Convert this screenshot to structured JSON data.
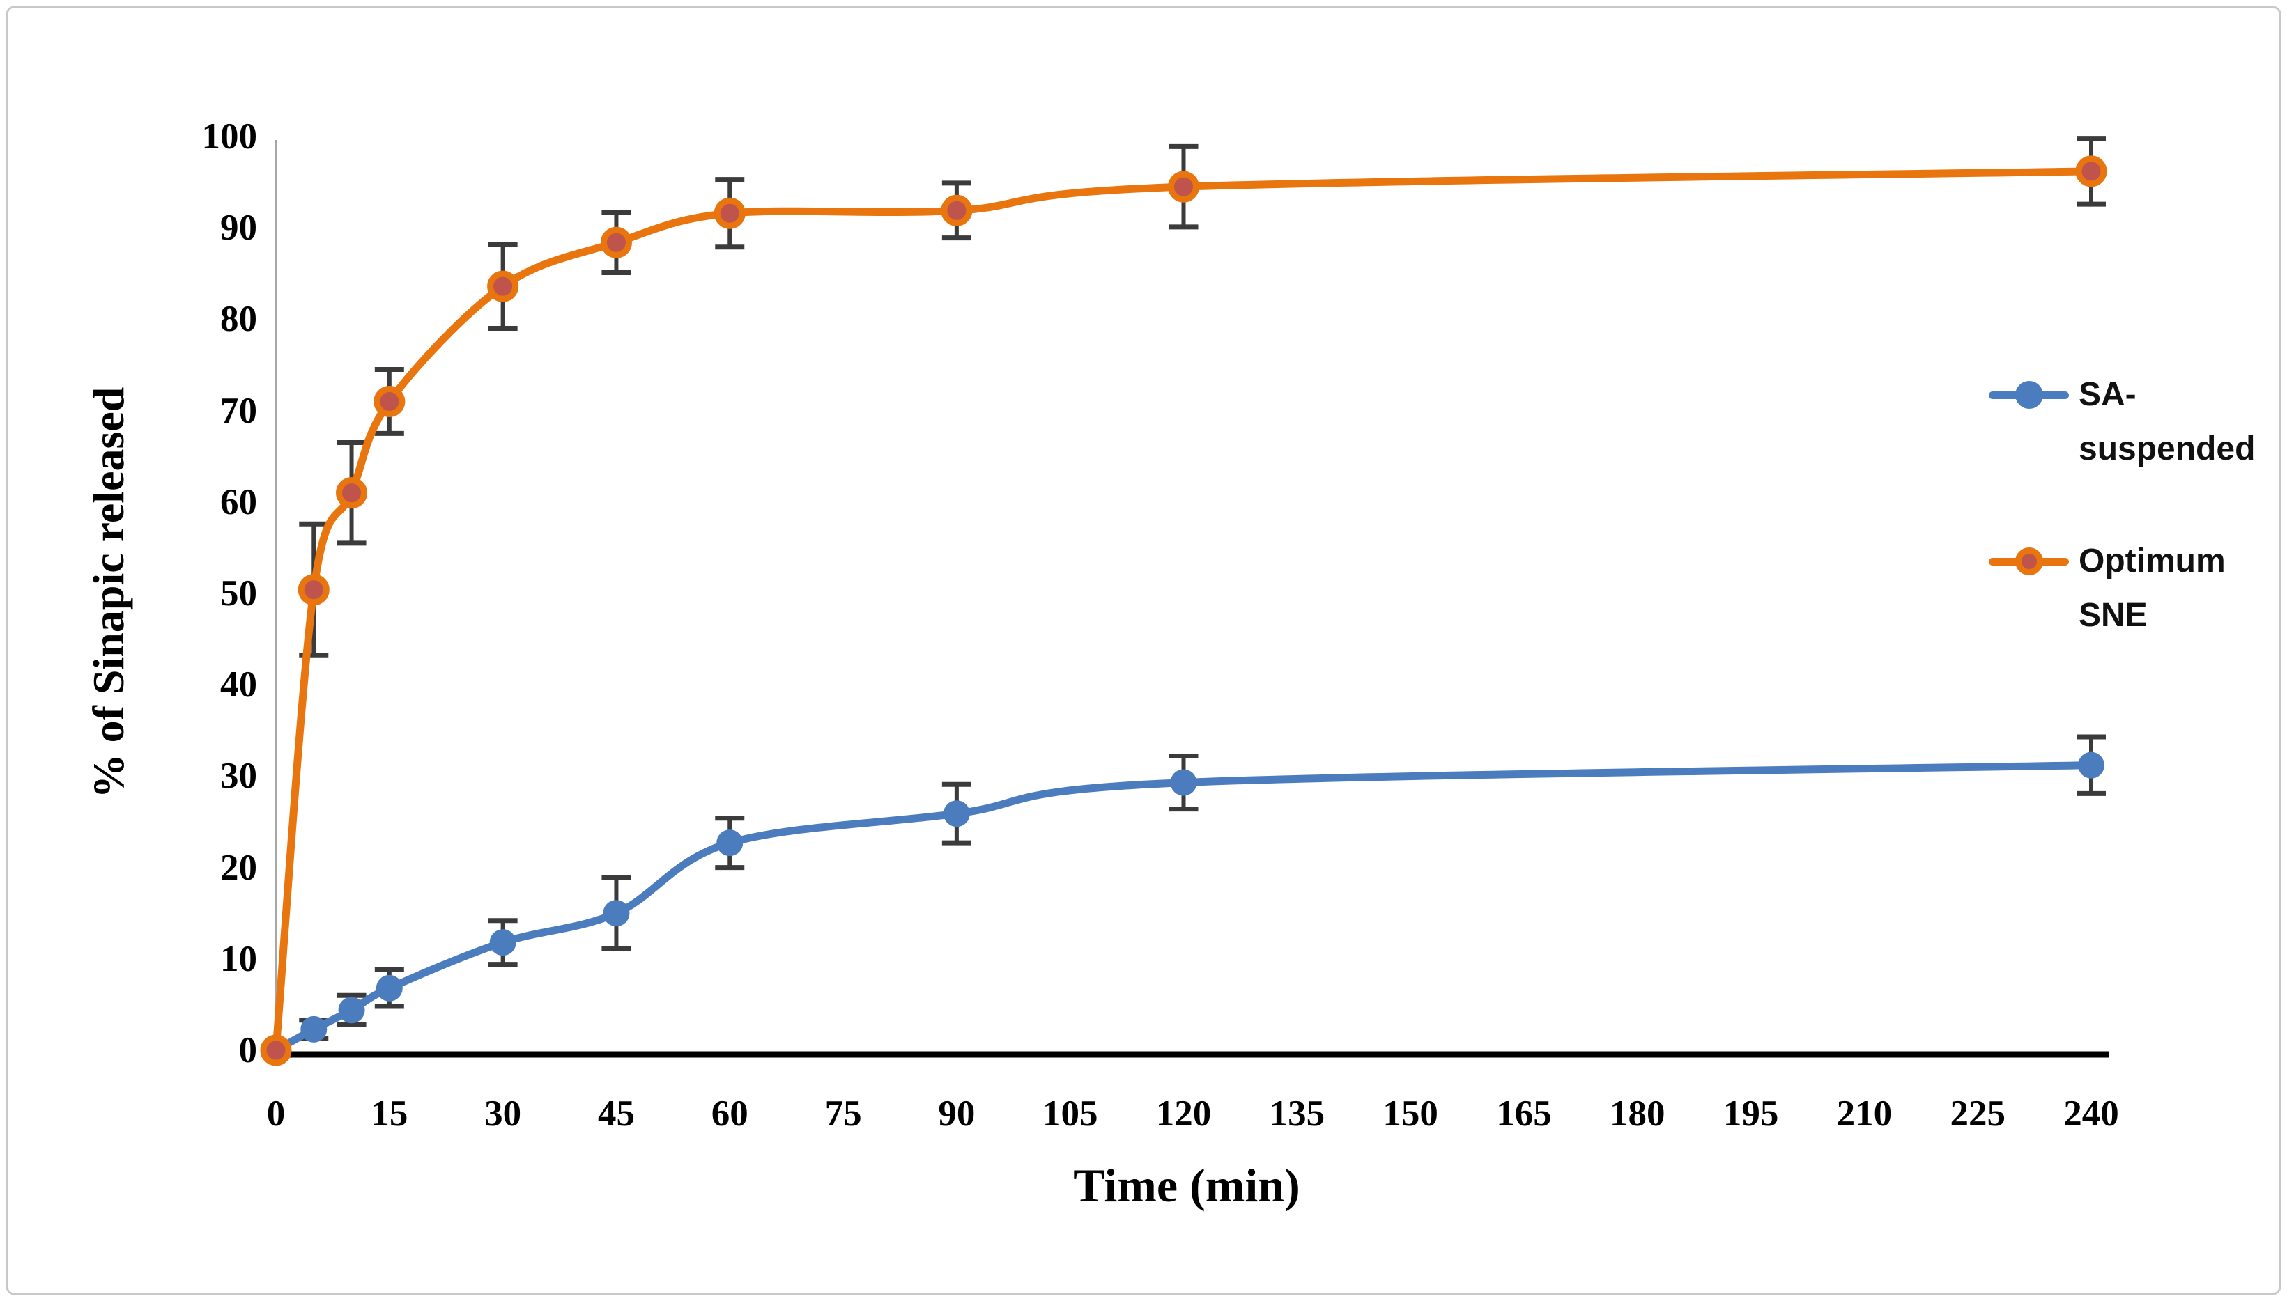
{
  "figure": {
    "background": "#ffffff",
    "border_color": "#c9c9c9"
  },
  "chart_data": {
    "type": "line",
    "title": "",
    "xlabel": "Time (min)",
    "ylabel": "% of Sinapic released",
    "xlim": [
      0,
      240
    ],
    "ylim": [
      0,
      100
    ],
    "x_ticks": [
      0,
      15,
      30,
      45,
      60,
      75,
      90,
      105,
      120,
      135,
      150,
      165,
      180,
      195,
      210,
      225,
      240
    ],
    "y_ticks": [
      0,
      10,
      20,
      30,
      40,
      50,
      60,
      70,
      80,
      90,
      100
    ],
    "grid": false,
    "legend_position": "right",
    "error_bars": true,
    "x": [
      0,
      5,
      10,
      15,
      30,
      45,
      60,
      90,
      120,
      240
    ],
    "series": [
      {
        "name": "SA-suspended",
        "legend_lines": [
          "SA-",
          "suspended"
        ],
        "color": "#4a7cbe",
        "marker_fill": "#4a7cbe",
        "marker_stroke": "none",
        "values": [
          0,
          2.3,
          4.4,
          6.8,
          11.8,
          15.0,
          22.7,
          25.9,
          29.3,
          31.2
        ],
        "errors": [
          0,
          1.0,
          1.6,
          2.0,
          2.4,
          3.9,
          2.7,
          3.2,
          2.9,
          3.1
        ]
      },
      {
        "name": "Optimum SNE",
        "legend_lines": [
          "Optimum",
          "SNE"
        ],
        "color": "#e8750e",
        "marker_fill": "#be544c",
        "marker_stroke": "#e8750e",
        "values": [
          0,
          50.4,
          61.0,
          71.0,
          83.6,
          88.4,
          91.6,
          91.9,
          94.5,
          96.2
        ],
        "errors": [
          0,
          7.2,
          5.5,
          3.5,
          4.6,
          3.3,
          3.7,
          3.0,
          4.4,
          3.6
        ]
      }
    ],
    "error_bar_color": "#3b3b3b",
    "x_axis_color": "#000000",
    "y_axis_color": "#a6a6a6"
  }
}
